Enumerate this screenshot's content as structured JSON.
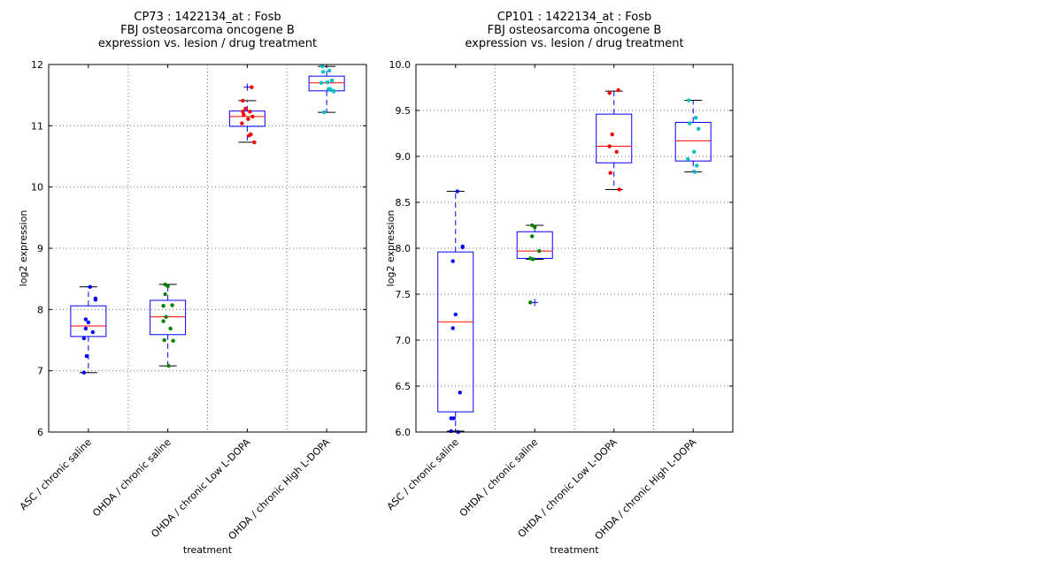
{
  "chart_data": [
    {
      "type": "box",
      "title_lines": [
        "CP73 : 1422134_at : Fosb",
        "FBJ osteosarcoma oncogene B",
        "expression vs. lesion / drug treatment"
      ],
      "xlabel": "treatment",
      "ylabel": "log2 expression",
      "ylim": [
        6,
        12
      ],
      "yticks": [
        "6",
        "7",
        "8",
        "9",
        "10",
        "11",
        "12"
      ],
      "grid": true,
      "categories": [
        "ASC / chronic saline",
        "OHDA / chronic saline",
        "OHDA / chronic Low L-DOPA",
        "OHDA / chronic High L-DOPA"
      ],
      "colors": [
        "#0000ff",
        "#008000",
        "#ff0000",
        "#00bfbf"
      ],
      "boxes": [
        {
          "whisker_low": 6.97,
          "q1": 7.56,
          "median": 7.73,
          "q3": 8.06,
          "whisker_high": 8.37,
          "outliers": [],
          "points": [
            8.37,
            8.18,
            8.16,
            7.84,
            7.79,
            7.69,
            7.63,
            7.53,
            7.24,
            6.97
          ]
        },
        {
          "whisker_low": 7.08,
          "q1": 7.59,
          "median": 7.88,
          "q3": 8.15,
          "whisker_high": 8.41,
          "outliers": [],
          "points": [
            8.41,
            8.38,
            8.25,
            8.07,
            8.06,
            7.88,
            7.81,
            7.69,
            7.5,
            7.49,
            7.08
          ]
        },
        {
          "whisker_low": 10.73,
          "q1": 10.99,
          "median": 11.15,
          "q3": 11.24,
          "whisker_high": 11.41,
          "outliers": [
            11.63
          ],
          "points": [
            11.63,
            11.41,
            11.28,
            11.23,
            11.23,
            11.18,
            11.15,
            11.11,
            11.04,
            10.86,
            10.84,
            10.73
          ]
        },
        {
          "whisker_low": 11.22,
          "q1": 11.57,
          "median": 11.7,
          "q3": 11.81,
          "whisker_high": 11.97,
          "outliers": [],
          "points": [
            11.97,
            11.9,
            11.88,
            11.74,
            11.71,
            11.7,
            11.6,
            11.6,
            11.56,
            11.57,
            11.22
          ]
        }
      ]
    },
    {
      "type": "box",
      "title_lines": [
        "CP101 : 1422134_at : Fosb",
        "FBJ osteosarcoma oncogene B",
        "expression vs. lesion / drug treatment"
      ],
      "xlabel": "treatment",
      "ylabel": "log2 expression",
      "ylim": [
        6,
        10
      ],
      "yticks": [
        "6.0",
        "6.5",
        "7.0",
        "7.5",
        "8.0",
        "8.5",
        "9.0",
        "9.5",
        "10.0"
      ],
      "grid": true,
      "categories": [
        "ASC / chronic saline",
        "OHDA / chronic saline",
        "OHDA / chronic Low L-DOPA",
        "OHDA / chronic High L-DOPA"
      ],
      "colors": [
        "#0000ff",
        "#008000",
        "#ff0000",
        "#00bfbf"
      ],
      "boxes": [
        {
          "whisker_low": 6.01,
          "q1": 6.22,
          "median": 7.2,
          "q3": 7.96,
          "whisker_high": 8.62,
          "outliers": [],
          "points": [
            8.62,
            8.02,
            8.01,
            7.86,
            7.28,
            7.13,
            6.43,
            6.15,
            6.15,
            6.01,
            6.0
          ]
        },
        {
          "whisker_low": 7.88,
          "q1": 7.89,
          "median": 7.97,
          "q3": 8.18,
          "whisker_high": 8.25,
          "outliers": [
            7.41
          ],
          "points": [
            8.25,
            8.23,
            8.13,
            7.97,
            7.89,
            7.88,
            7.41
          ]
        },
        {
          "whisker_low": 8.64,
          "q1": 8.93,
          "median": 9.11,
          "q3": 9.46,
          "whisker_high": 9.71,
          "outliers": [],
          "points": [
            9.72,
            9.69,
            9.24,
            9.11,
            9.05,
            8.82,
            8.64
          ]
        },
        {
          "whisker_low": 8.83,
          "q1": 8.95,
          "median": 9.17,
          "q3": 9.37,
          "whisker_high": 9.61,
          "outliers": [],
          "points": [
            9.61,
            9.42,
            9.36,
            9.3,
            9.05,
            8.97,
            8.9,
            8.83
          ]
        }
      ]
    }
  ]
}
